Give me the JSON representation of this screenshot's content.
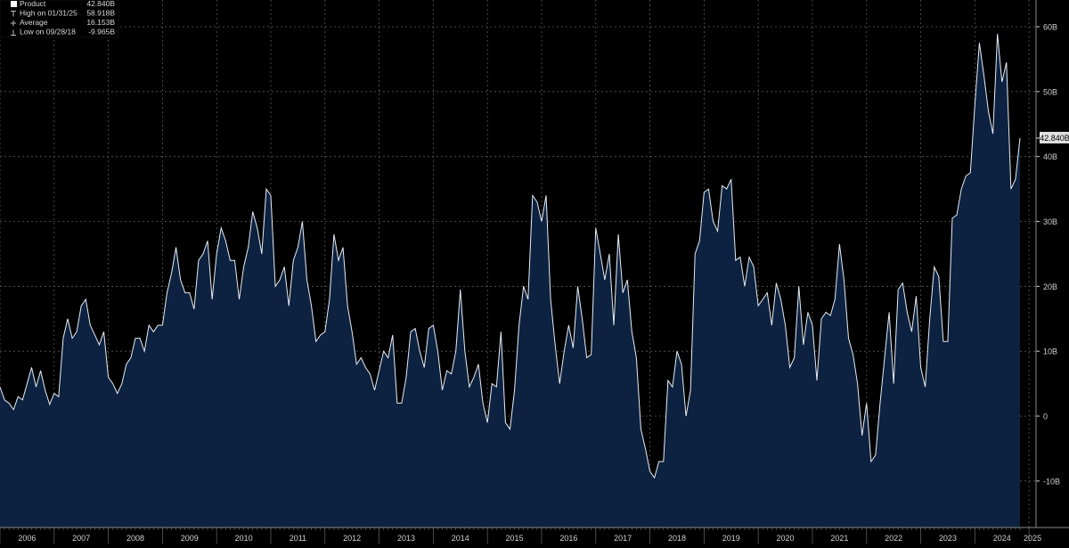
{
  "legend": {
    "items": [
      {
        "label": "Product",
        "value": "42.840B",
        "marker": "square"
      },
      {
        "label": "High on 01/31/25",
        "value": "58.918B",
        "marker": "high-marker"
      },
      {
        "label": "Average",
        "value": "16.153B",
        "marker": "average-marker"
      },
      {
        "label": "Low on 09/28/18",
        "value": "-9.965B",
        "marker": "low-marker"
      }
    ]
  },
  "last_value_tag": "42.840B",
  "colors": {
    "background": "#000000",
    "area_fill": "#0d2240",
    "line": "#e6edf5",
    "grid": "#5a5a5a",
    "text": "#d0d0d0",
    "tag_bg": "#e0e0e0",
    "tag_text": "#000000"
  },
  "chart_data": {
    "type": "area",
    "title": "",
    "xlabel": "",
    "ylabel": "",
    "unit": "B",
    "frequency": "monthly",
    "start": "2006-01",
    "end": "2025-05",
    "ylim": [
      -15,
      65
    ],
    "grid": true,
    "y_ticks": [
      {
        "value": 60,
        "label": "60B"
      },
      {
        "value": 50,
        "label": "50B"
      },
      {
        "value": 40,
        "label": "40B"
      },
      {
        "value": 30,
        "label": "30B"
      },
      {
        "value": 20,
        "label": "20B"
      },
      {
        "value": 10,
        "label": "10B"
      },
      {
        "value": 0,
        "label": "0"
      },
      {
        "value": -10,
        "label": "-10B"
      }
    ],
    "x_ticks": [
      "2006",
      "2007",
      "2008",
      "2009",
      "2010",
      "2011",
      "2012",
      "2013",
      "2014",
      "2015",
      "2016",
      "2017",
      "2018",
      "2019",
      "2020",
      "2021",
      "2022",
      "2023",
      "2024",
      "2025"
    ],
    "series": [
      {
        "name": "Product",
        "values": [
          4.5,
          2.5,
          2,
          1,
          3,
          2.5,
          5,
          7.5,
          4.5,
          7,
          4,
          1.8,
          3.5,
          3,
          12,
          15,
          12,
          13,
          17,
          18,
          14,
          12.5,
          11,
          13,
          6,
          5,
          3.5,
          5,
          8,
          9,
          12,
          12,
          10,
          14,
          13,
          14,
          14,
          19,
          22,
          26,
          21,
          19,
          19,
          16.5,
          24,
          25,
          27,
          18,
          25,
          29,
          27,
          24,
          24,
          18,
          23,
          26,
          31.5,
          29,
          25,
          35,
          34,
          20,
          21,
          23,
          17,
          24,
          26,
          30,
          21,
          17,
          11.5,
          12.5,
          13,
          18,
          28,
          24,
          26,
          17,
          13,
          8,
          9,
          7.5,
          6.5,
          4,
          7,
          10,
          9,
          12.5,
          2,
          2,
          6,
          13,
          13.5,
          10,
          7.5,
          13.5,
          14,
          10,
          4,
          7,
          6.5,
          10,
          19.5,
          10,
          4.5,
          6,
          8,
          2,
          -1,
          5,
          4.5,
          13,
          -1,
          -2,
          4,
          14,
          20,
          18,
          34,
          33,
          30,
          34,
          18,
          11,
          5,
          10,
          14,
          10.5,
          20,
          15,
          9,
          9.5,
          29,
          25,
          21,
          25,
          14,
          28,
          19,
          21,
          13,
          9,
          -2,
          -5,
          -8.5,
          -9.5,
          -7,
          -7,
          5.5,
          4.5,
          10,
          8,
          0,
          4,
          25,
          27,
          34.5,
          35,
          30,
          28.5,
          35.5,
          35,
          36.5,
          24,
          24.5,
          20,
          24.5,
          23,
          17,
          18,
          19,
          14,
          20.5,
          18,
          14,
          7.5,
          9,
          20,
          11,
          16,
          14,
          5.5,
          15,
          16,
          15.5,
          18,
          26.5,
          21,
          12,
          9.5,
          5,
          -3,
          2,
          -7,
          -6,
          2,
          9,
          16,
          5,
          19.5,
          20.5,
          16,
          13,
          18.5,
          7.5,
          4.5,
          15,
          23,
          21.5,
          11.5,
          11.5,
          30.5,
          31,
          35,
          37,
          37.5,
          48,
          57.5,
          52.5,
          47,
          43.5,
          58.9,
          51.5,
          54.5,
          35,
          36.5,
          42.84
        ]
      }
    ]
  }
}
